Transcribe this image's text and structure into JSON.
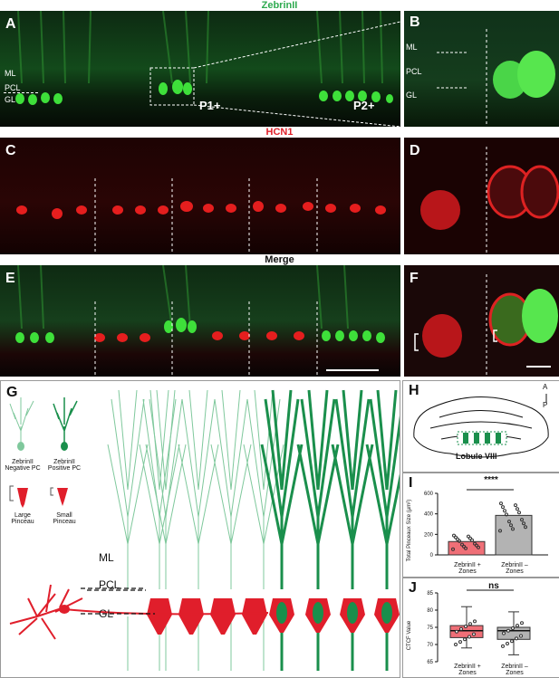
{
  "colors": {
    "green": "#1a8f4c",
    "green_light": "#7fc89c",
    "red": "#e01e2b",
    "bar_red": "#ef6f77",
    "bar_gray": "#b3b3b3",
    "label_green": "#2eaa4f",
    "label_red": "#e0202a"
  },
  "row1": {
    "title": "ZebrinII",
    "panel_a": "A",
    "panel_b": "B",
    "ml": "ML",
    "pcl": "PCL",
    "gl": "GL",
    "p1": "P1+",
    "p2": "P2+",
    "b_ml": "ML",
    "b_pcl": "PCL",
    "b_gl": "GL"
  },
  "row2": {
    "title": "HCN1",
    "panel_c": "C",
    "panel_d": "D"
  },
  "row3": {
    "title": "Merge",
    "panel_e": "E",
    "panel_f": "F"
  },
  "panel_g": {
    "label": "G",
    "legend": {
      "neg_pc": "ZebrinII\nNegative PC",
      "pos_pc": "ZebrinII\nPositive PC",
      "large": "Large\nPinceau",
      "small": "Small\nPinceau"
    },
    "ml": "ML",
    "pcl": "PCL",
    "gl": "GL"
  },
  "panel_h": {
    "label": "H",
    "caption": "Lobule VIII",
    "a": "A",
    "p": "P"
  },
  "panel_i": {
    "label": "I",
    "sig": "****"
  },
  "panel_j": {
    "label": "J",
    "sig": "ns"
  },
  "chart_data": [
    {
      "type": "bar",
      "title": "",
      "ylabel": "Total Pinceaux Size (µm²)",
      "categories": [
        "ZebrinII + Zones",
        "ZebrinII – Zones"
      ],
      "values": [
        130,
        385
      ],
      "ylim": [
        0,
        600
      ],
      "yticks": [
        0,
        200,
        400,
        600
      ],
      "annotation": "****"
    },
    {
      "type": "box",
      "title": "",
      "ylabel": "CTCF Value",
      "categories": [
        "ZebrinII + Zones",
        "ZebrinII – Zones"
      ],
      "medians": [
        74,
        74
      ],
      "q1": [
        72,
        71.5
      ],
      "q3": [
        75.5,
        75
      ],
      "whisker_low": [
        69,
        67
      ],
      "whisker_high": [
        81,
        79.5
      ],
      "ylim": [
        65,
        85
      ],
      "yticks": [
        65,
        70,
        75,
        80,
        85
      ],
      "annotation": "ns"
    }
  ]
}
